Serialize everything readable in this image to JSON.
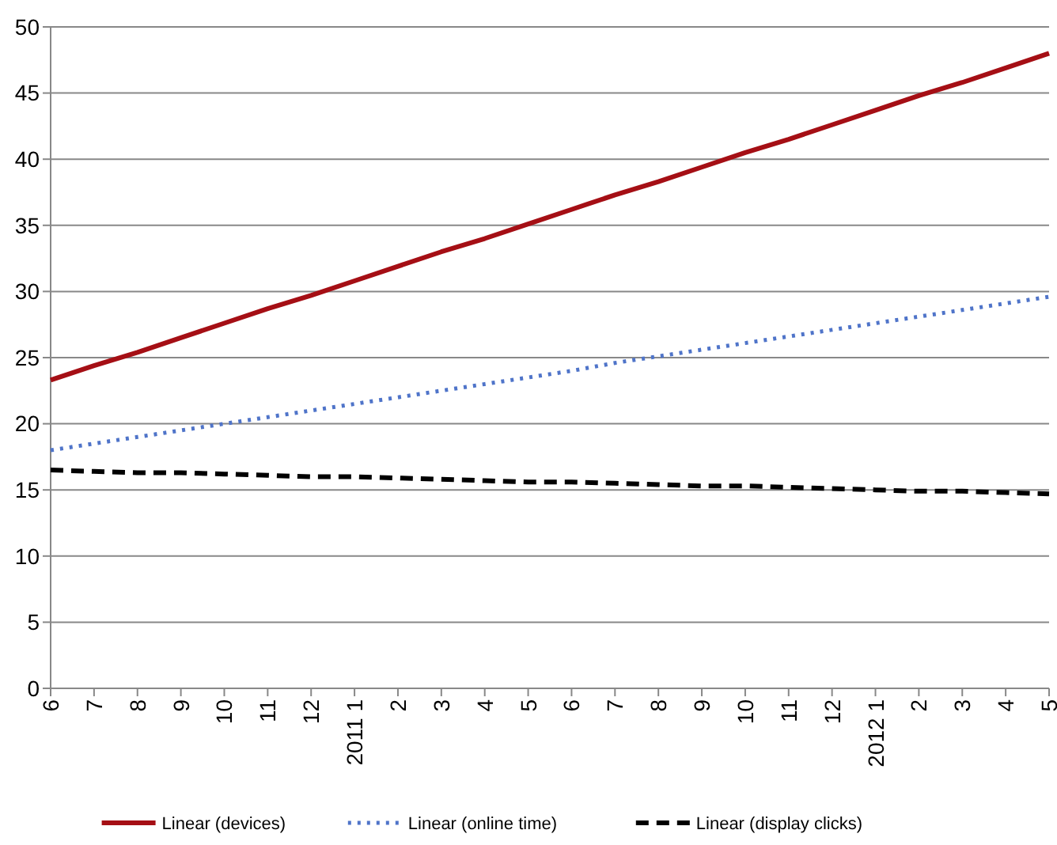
{
  "chart_data": {
    "type": "line",
    "categories": [
      "6",
      "7",
      "8",
      "9",
      "10",
      "11",
      "12",
      "2011 1",
      "2",
      "3",
      "4",
      "5",
      "6",
      "7",
      "8",
      "9",
      "10",
      "11",
      "12",
      "2012 1",
      "2",
      "3",
      "4",
      "5"
    ],
    "ylim": [
      0,
      50
    ],
    "yticks": [
      0,
      5,
      10,
      15,
      20,
      25,
      30,
      35,
      40,
      45,
      50
    ],
    "grid": "y",
    "legend": "bottom",
    "series": [
      {
        "name": "Linear (devices)",
        "color": "#a50f15",
        "line_style": "solid",
        "values": [
          23.3,
          24.4,
          25.4,
          26.5,
          27.6,
          28.7,
          29.7,
          30.8,
          31.9,
          33.0,
          34.0,
          35.1,
          36.2,
          37.3,
          38.3,
          39.4,
          40.5,
          41.5,
          42.6,
          43.7,
          44.8,
          45.8,
          46.9,
          48.0
        ]
      },
      {
        "name": "Linear (online time)",
        "color": "#4f74c9",
        "line_style": "dotted",
        "values": [
          18.0,
          18.5,
          19.0,
          19.5,
          20.0,
          20.5,
          21.0,
          21.5,
          22.0,
          22.5,
          23.0,
          23.5,
          24.0,
          24.6,
          25.1,
          25.6,
          26.1,
          26.6,
          27.1,
          27.6,
          28.1,
          28.6,
          29.1,
          29.6
        ]
      },
      {
        "name": "Linear (display clicks)",
        "color": "#000000",
        "line_style": "dashed",
        "values": [
          16.5,
          16.4,
          16.3,
          16.3,
          16.2,
          16.1,
          16.0,
          16.0,
          15.9,
          15.8,
          15.7,
          15.6,
          15.6,
          15.5,
          15.4,
          15.3,
          15.3,
          15.2,
          15.1,
          15.0,
          14.9,
          14.9,
          14.8,
          14.7
        ]
      }
    ]
  }
}
